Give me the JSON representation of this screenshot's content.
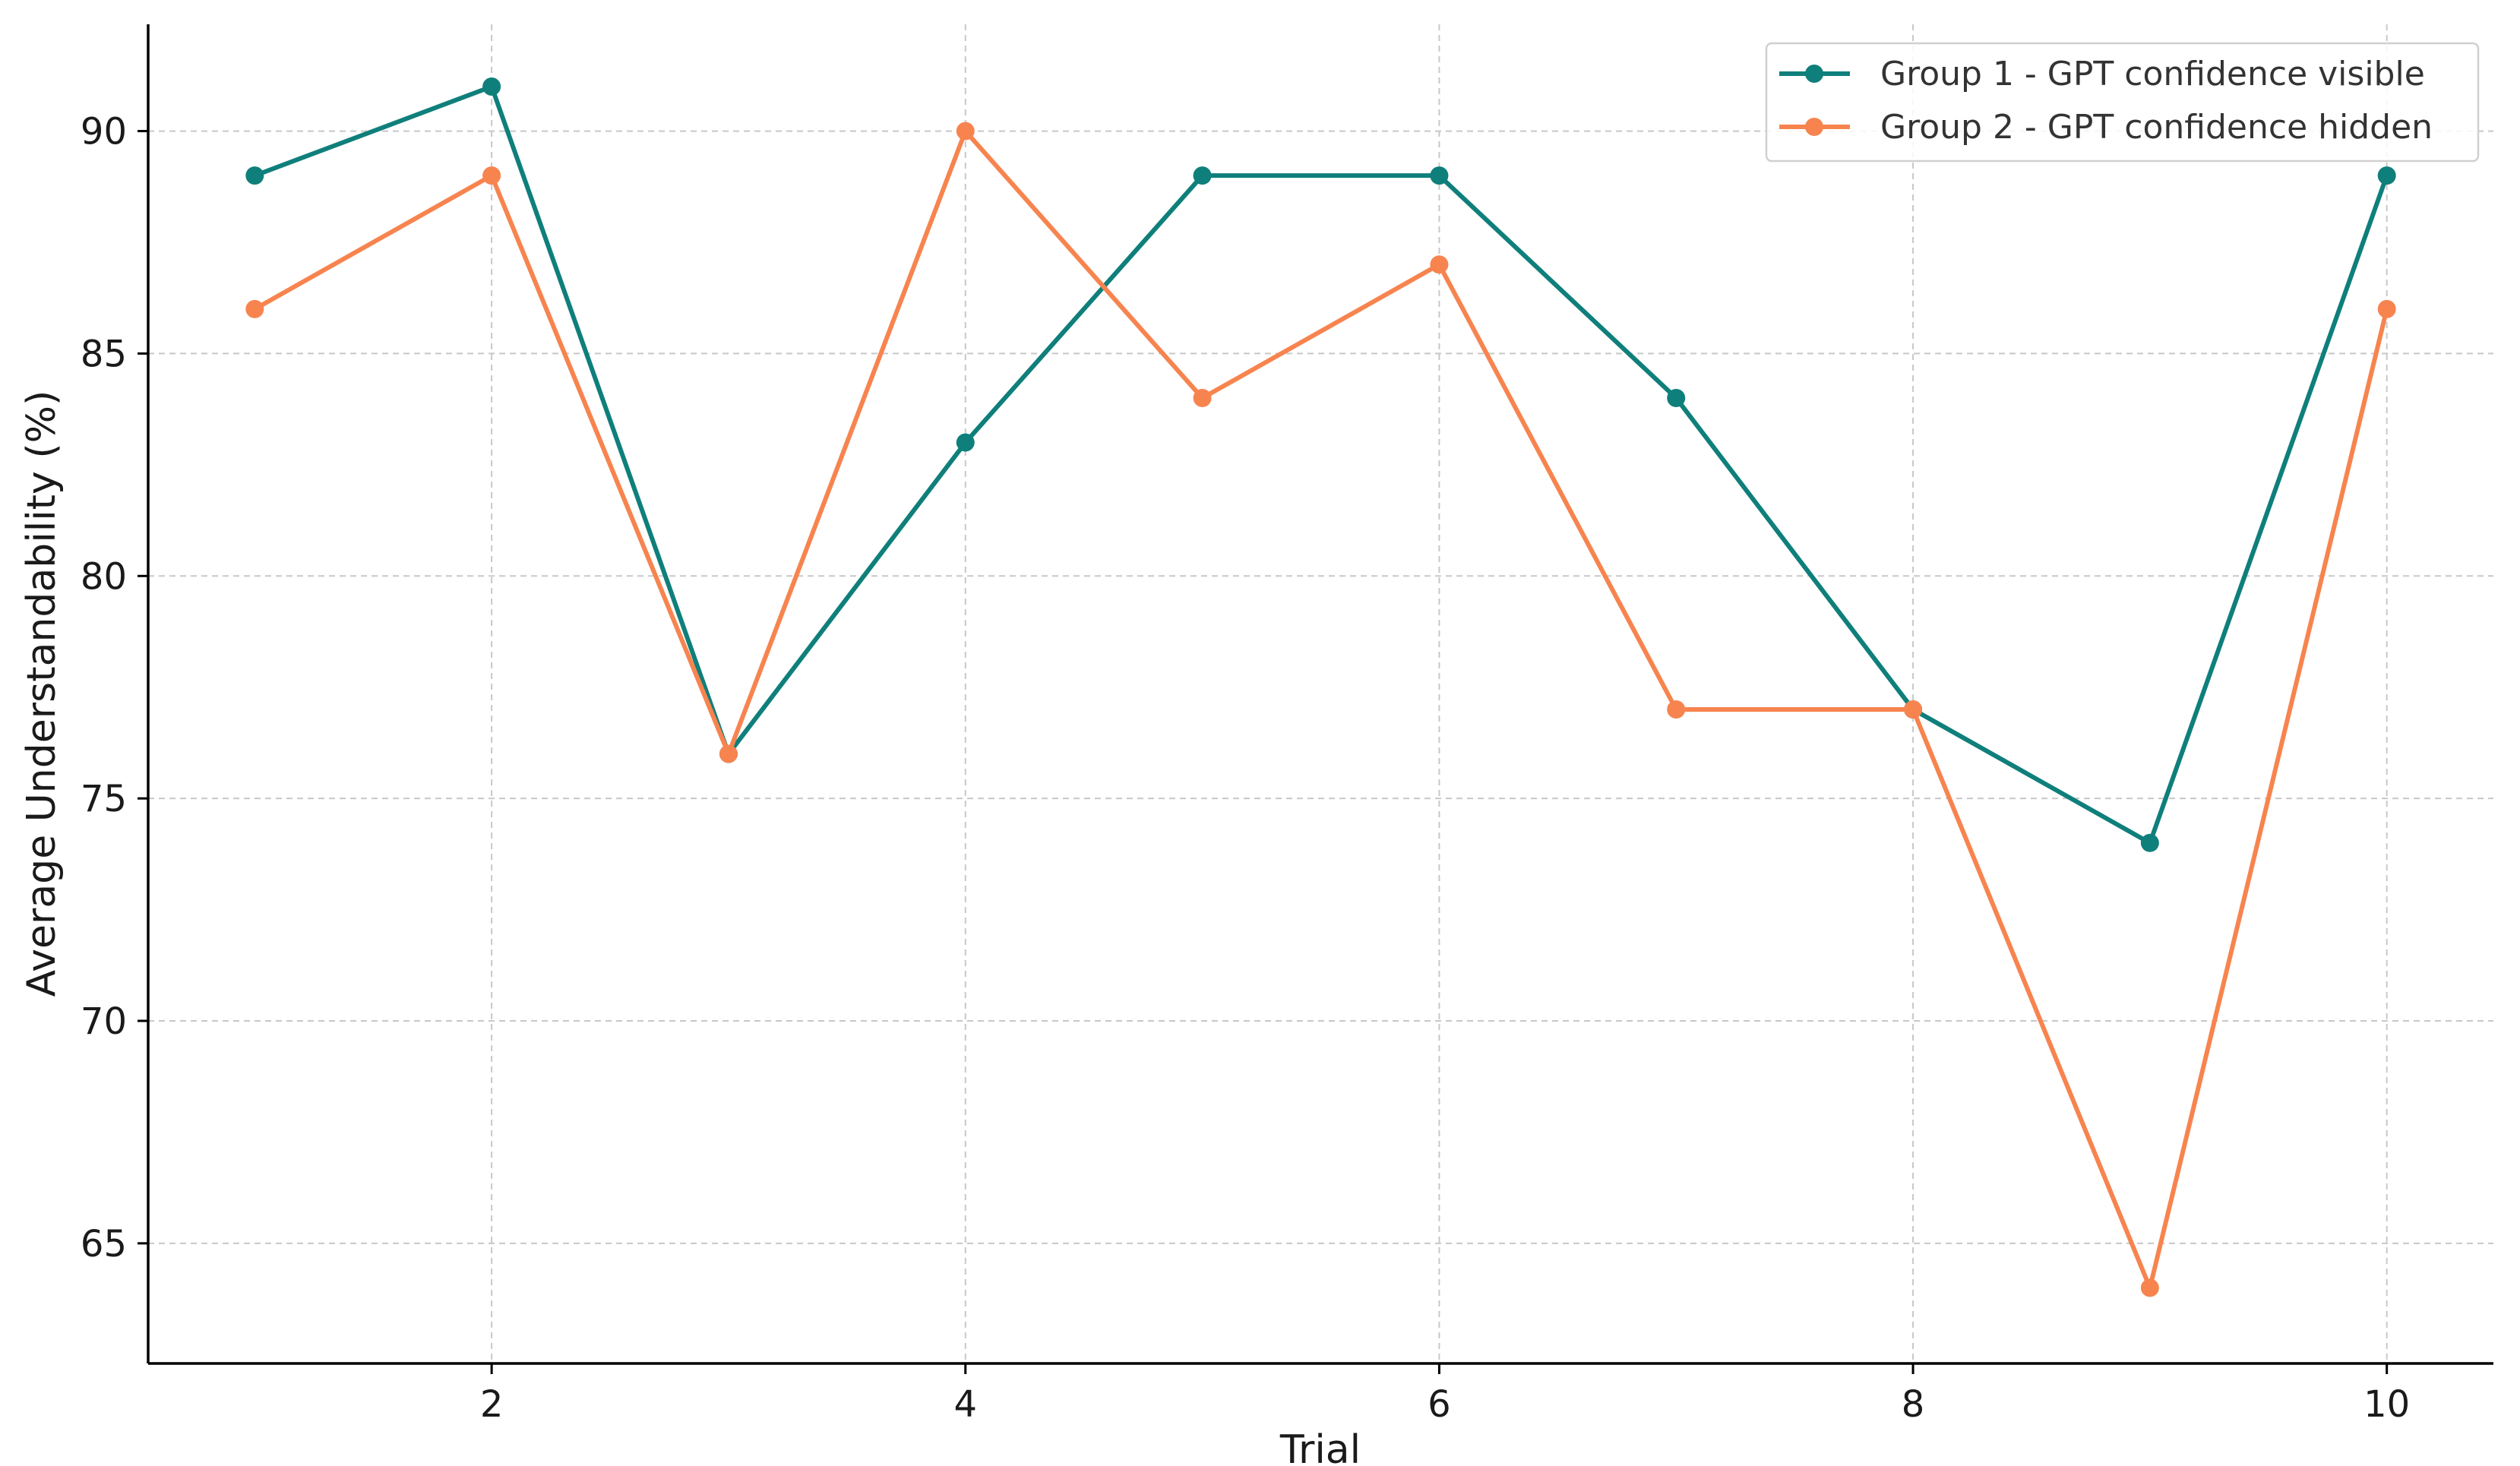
{
  "chart_data": {
    "type": "line",
    "title": "",
    "xlabel": "Trial",
    "ylabel": "Average Understandability (%)",
    "x": [
      1,
      2,
      3,
      4,
      5,
      6,
      7,
      8,
      9,
      10
    ],
    "xlim": [
      0.55,
      10.45
    ],
    "ylim": [
      62.3,
      92.4
    ],
    "xticks": [
      2,
      4,
      6,
      8,
      10
    ],
    "yticks": [
      65,
      70,
      75,
      80,
      85,
      90
    ],
    "grid": true,
    "legend_position": "top-right",
    "series": [
      {
        "name": "Group 1 - GPT confidence visible",
        "color": "#0f7f7b",
        "values": [
          89,
          91,
          76,
          83,
          89,
          89,
          84,
          77,
          74,
          89
        ]
      },
      {
        "name": "Group 2 - GPT confidence hidden",
        "color": "#f7844f",
        "values": [
          86,
          89,
          76,
          90,
          84,
          87,
          77,
          77,
          64,
          86
        ]
      }
    ]
  }
}
